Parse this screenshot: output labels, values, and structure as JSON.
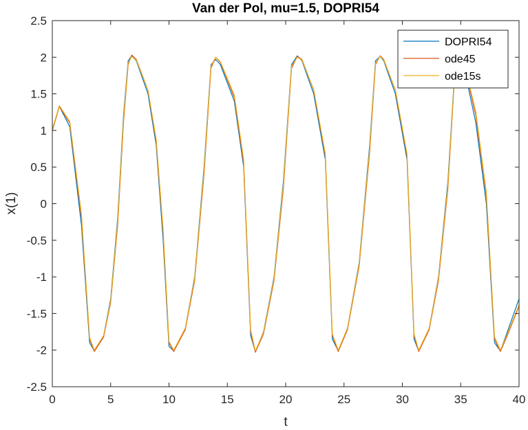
{
  "chart_data": {
    "type": "line",
    "title": "Van der Pol, mu=1.5, DOPRI54",
    "xlabel": "t",
    "ylabel": "x(1)",
    "xlim": [
      0,
      40
    ],
    "ylim": [
      -2.5,
      2.5
    ],
    "xticks": [
      "0",
      "5",
      "10",
      "15",
      "20",
      "25",
      "30",
      "35",
      "40"
    ],
    "yticks": [
      "2.5",
      "2",
      "1.5",
      "1",
      "0.5",
      "0",
      "-0.5",
      "-1",
      "-1.5",
      "-2",
      "-2.5"
    ],
    "grid": false,
    "legend_position": "top-right",
    "series": [
      {
        "name": "DOPRI54",
        "color": "#0072BD",
        "x": [
          0,
          0.6,
          1.5,
          2.5,
          3.2,
          3.6,
          4.4,
          5.0,
          5.6,
          6.1,
          6.5,
          6.8,
          7.2,
          8.2,
          8.9,
          9.5,
          10.0,
          10.4,
          11.4,
          12.2,
          13.0,
          13.6,
          14.0,
          14.4,
          15.6,
          16.4,
          17.0,
          17.4,
          18.1,
          19.0,
          19.8,
          20.5,
          21.0,
          21.4,
          22.4,
          23.4,
          24.0,
          24.5,
          25.3,
          26.3,
          27.2,
          27.7,
          28.1,
          28.4,
          29.4,
          30.4,
          31.0,
          31.4,
          32.3,
          33.1,
          33.9,
          34.5,
          34.9,
          35.3,
          36.3,
          37.2,
          37.9,
          38.4,
          39.0,
          40.0
        ],
        "y": [
          1.0,
          1.33,
          1.05,
          -0.3,
          -1.9,
          -2.01,
          -1.8,
          -1.3,
          -0.2,
          1.2,
          1.95,
          2.02,
          1.95,
          1.5,
          0.8,
          -0.5,
          -1.95,
          -2.01,
          -1.7,
          -1.0,
          0.5,
          1.9,
          1.97,
          1.9,
          1.4,
          0.5,
          -1.8,
          -2.02,
          -1.75,
          -1.0,
          0.3,
          1.9,
          2.02,
          1.95,
          1.5,
          0.6,
          -1.85,
          -2.01,
          -1.7,
          -0.8,
          0.8,
          1.95,
          2.01,
          1.95,
          1.5,
          0.6,
          -1.85,
          -2.01,
          -1.7,
          -1.0,
          0.3,
          1.85,
          2.0,
          1.85,
          1.1,
          0.0,
          -1.9,
          -2.01,
          -1.75,
          -1.3
        ]
      },
      {
        "name": "ode45",
        "color": "#D95319",
        "x": [
          0,
          0.6,
          1.5,
          2.5,
          3.2,
          3.6,
          4.4,
          5.0,
          5.6,
          6.1,
          6.5,
          6.8,
          7.2,
          8.2,
          8.9,
          9.5,
          10.0,
          10.4,
          11.4,
          12.2,
          13.0,
          13.6,
          14.0,
          14.4,
          15.6,
          16.4,
          17.0,
          17.4,
          18.1,
          19.0,
          19.8,
          20.5,
          21.0,
          21.4,
          22.4,
          23.4,
          24.0,
          24.5,
          25.3,
          26.3,
          27.2,
          27.7,
          28.1,
          28.4,
          29.4,
          30.4,
          31.0,
          31.4,
          32.3,
          33.1,
          33.9,
          34.5,
          34.9,
          35.3,
          36.3,
          37.2,
          37.9,
          38.4,
          39.0,
          40.0
        ],
        "y": [
          1.0,
          1.33,
          1.1,
          -0.2,
          -1.85,
          -2.02,
          -1.82,
          -1.35,
          -0.3,
          1.1,
          1.9,
          2.03,
          1.97,
          1.55,
          0.85,
          -0.4,
          -1.9,
          -2.02,
          -1.72,
          -1.05,
          0.4,
          1.85,
          2.0,
          1.93,
          1.45,
          0.55,
          -1.75,
          -2.03,
          -1.78,
          -1.05,
          0.2,
          1.85,
          2.01,
          1.97,
          1.55,
          0.65,
          -1.8,
          -2.02,
          -1.72,
          -0.85,
          0.7,
          1.9,
          2.02,
          1.97,
          1.55,
          0.65,
          -1.8,
          -2.02,
          -1.72,
          -1.05,
          0.2,
          1.8,
          2.01,
          1.9,
          1.2,
          0.1,
          -1.85,
          -2.02,
          -1.8,
          -1.4
        ]
      },
      {
        "name": "ode15s",
        "color": "#EDB120",
        "x": [
          0,
          0.6,
          1.5,
          2.5,
          3.2,
          3.6,
          4.4,
          5.0,
          5.6,
          6.1,
          6.5,
          6.8,
          7.2,
          8.2,
          8.9,
          9.5,
          10.0,
          10.4,
          11.4,
          12.2,
          13.0,
          13.6,
          14.0,
          14.4,
          15.6,
          16.4,
          17.0,
          17.4,
          18.1,
          19.0,
          19.8,
          20.5,
          21.0,
          21.4,
          22.4,
          23.4,
          24.0,
          24.5,
          25.3,
          26.3,
          27.2,
          27.7,
          28.1,
          28.4,
          29.4,
          30.4,
          31.0,
          31.4,
          32.3,
          33.1,
          33.9,
          34.5,
          34.9,
          35.3,
          36.3,
          37.2,
          37.9,
          38.4,
          39.0,
          40.0
        ],
        "y": [
          1.02,
          1.34,
          1.12,
          -0.15,
          -1.83,
          -2.0,
          -1.8,
          -1.33,
          -0.25,
          1.15,
          1.92,
          2.01,
          1.96,
          1.55,
          0.88,
          -0.35,
          -1.88,
          -2.0,
          -1.7,
          -1.02,
          0.45,
          1.88,
          2.0,
          1.94,
          1.48,
          0.6,
          -1.72,
          -2.01,
          -1.76,
          -1.02,
          0.25,
          1.88,
          2.0,
          1.96,
          1.56,
          0.68,
          -1.78,
          -2.0,
          -1.7,
          -0.82,
          0.75,
          1.92,
          2.01,
          1.96,
          1.56,
          0.68,
          -1.78,
          -2.0,
          -1.7,
          -1.02,
          0.25,
          1.82,
          2.0,
          1.92,
          1.25,
          0.15,
          -1.82,
          -2.0,
          -1.78,
          -1.38
        ]
      }
    ]
  }
}
